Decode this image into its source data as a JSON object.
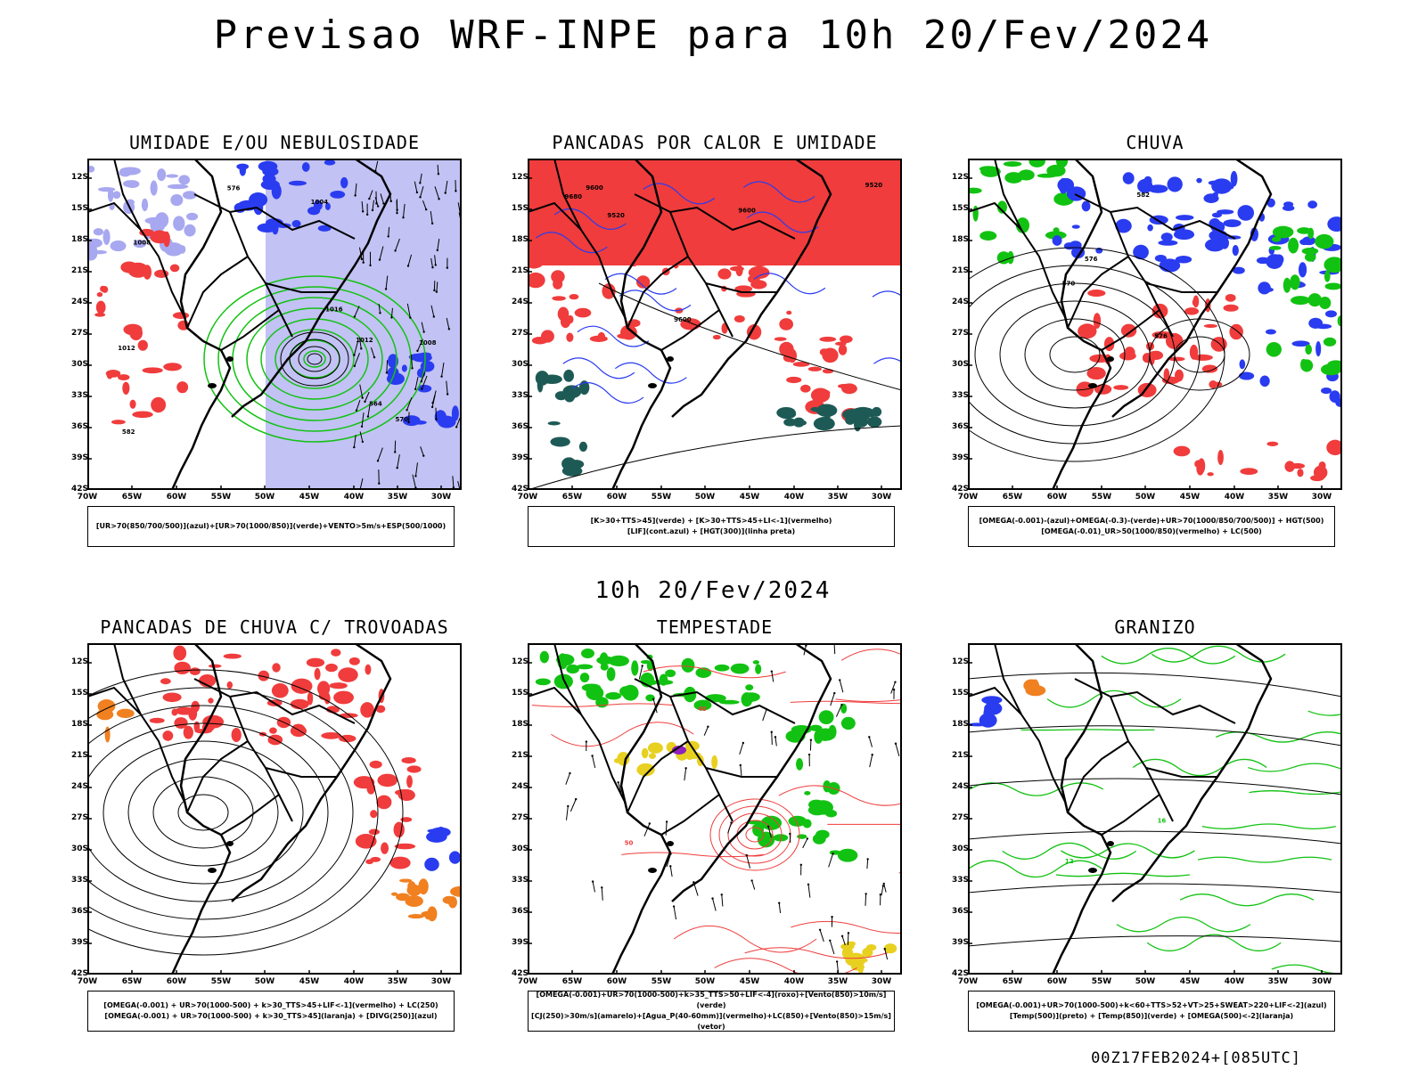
{
  "title": "Previsao WRF-INPE  para 10h 20/Fev/2024",
  "mid_title": "10h 20/Fev/2024",
  "footer": "00Z17FEB2024+[085UTC]",
  "lat_labels": [
    "12S",
    "15S",
    "18S",
    "21S",
    "24S",
    "27S",
    "30S",
    "33S",
    "36S",
    "39S",
    "42S"
  ],
  "lon_labels": [
    "70W",
    "65W",
    "60W",
    "55W",
    "50W",
    "45W",
    "40W",
    "35W",
    "30W"
  ],
  "colors": {
    "blue": "#2a3cf0",
    "green": "#12c212",
    "red": "#f03c3c",
    "orange": "#f08020",
    "yellow": "#e8d020",
    "purple": "#9020c0",
    "lavender": "#a8a8f0",
    "teal": "#1e5a55"
  },
  "panels": [
    {
      "title": "UMIDADE E/OU NEBULOSIDADE",
      "legend": [
        "[UR>70(850/700/500)](azul)+[UR>70(1000/850)](verde)+VENTO>5m/s+ESP(500/1000)"
      ],
      "contour_labels": [
        "1012",
        "1012",
        "1008",
        "1008",
        "1004",
        "1016",
        "570",
        "576",
        "582",
        "564"
      ]
    },
    {
      "title": "PANCADAS POR CALOR E UMIDADE",
      "legend": [
        "[K>30+TTS>45](verde) + [K>30+TTS>45+LI<-1](vermelho)",
        "[LIF](cont.azul) + [HGT(300)](linha preta)"
      ],
      "contour_labels": [
        "9680",
        "9600",
        "9600",
        "9520",
        "9520",
        "9600"
      ]
    },
    {
      "title": "CHUVA",
      "legend": [
        "[OMEGA(-0.001)-(azul)+OMEGA(-0.3)-(verde)+UR>70(1000/850/700/500)] + HGT(500)",
        "[OMEGA(-0.01)_UR>50(1000/850)(vermelho) + LC(500)"
      ],
      "contour_labels": [
        "582",
        "576",
        "576",
        "570"
      ]
    },
    {
      "title": "PANCADAS DE CHUVA C/ TROVOADAS",
      "legend": [
        "[OMEGA(-0.001) + UR>70(1000-500) + k>30_TTS>45+LIF<-1](vermelho) + LC(250)",
        "[OMEGA(-0.001) + UR>70(1000-500) + k>30_TTS>45](laranja) + [DIVG(250)](azul)"
      ],
      "contour_labels": []
    },
    {
      "title": "TEMPESTADE",
      "legend": [
        "[OMEGA(-0.001)+UR>70(1000-500)+k>35_TTS>50+LIF<-4](roxo)+[Vento(850)>10m/s](verde)",
        "[CJ(250)>30m/s](amarelo)+[Agua_P(40-60mm)](vermelho)+LC(850)+[Vento(850)>15m/s](vetor)"
      ],
      "contour_labels": [
        "40",
        "50"
      ]
    },
    {
      "title": "GRANIZO",
      "legend": [
        "[OMEGA(-0.001)+UR>70(1000-500)+k<60+TTS>52+VT>25+SWEAT>220+LIF<-2](azul)",
        "[Temp(500)](preto) + [Temp(850)](verde) + [OMEGA(500)<-2](laranja)"
      ],
      "contour_labels": [
        "12",
        "16"
      ]
    }
  ]
}
